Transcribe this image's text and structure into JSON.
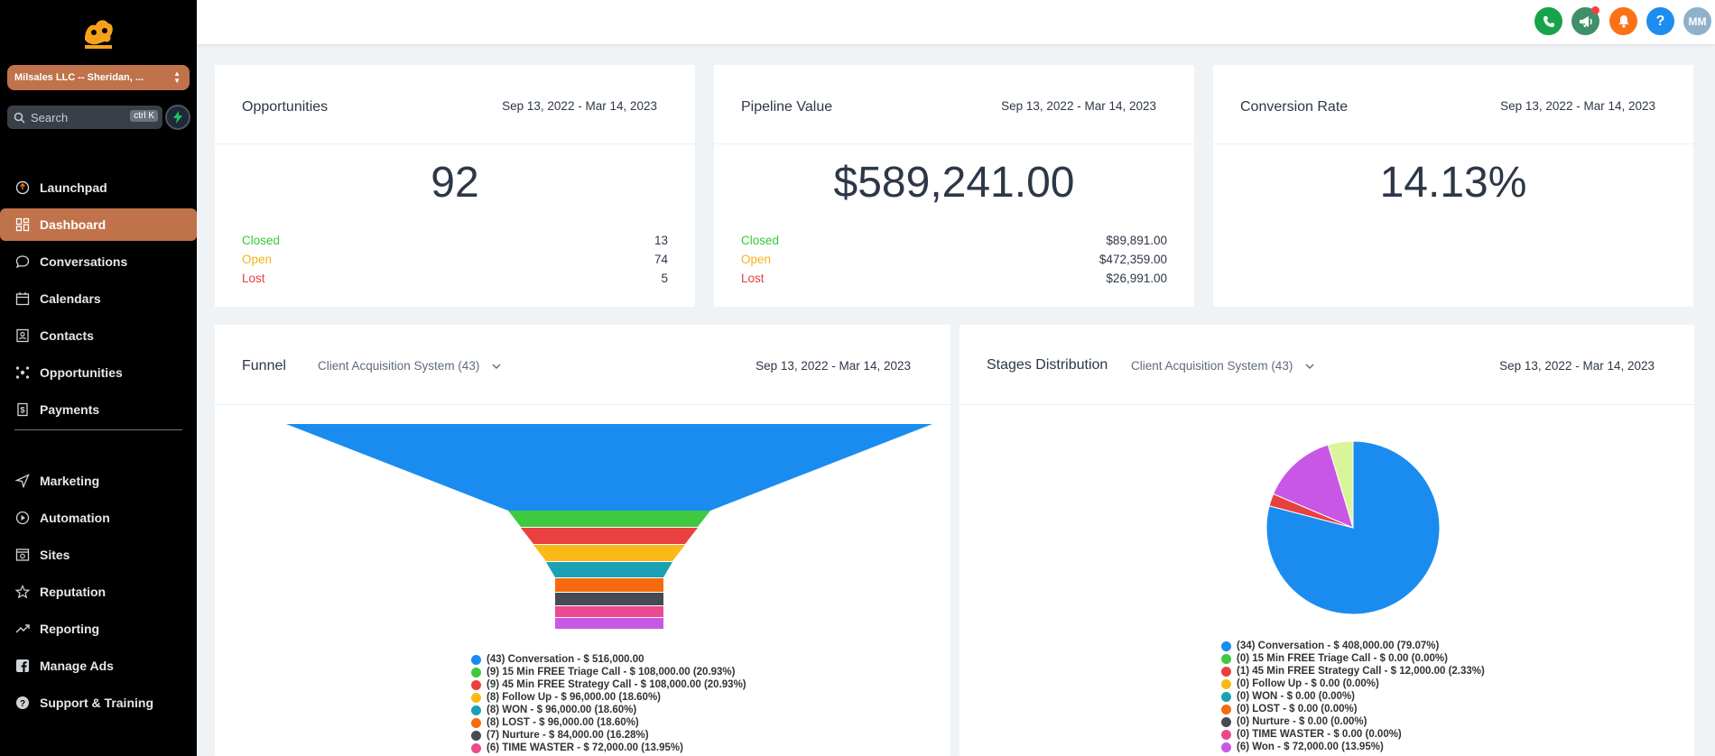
{
  "sidebar": {
    "account_label": "Milsales LLC -- Sheridan, ...",
    "search_placeholder": "Search",
    "search_shortcut": "ctrl K",
    "items": [
      {
        "label": "Launchpad",
        "icon": "launchpad-icon"
      },
      {
        "label": "Dashboard",
        "icon": "dashboard-icon"
      },
      {
        "label": "Conversations",
        "icon": "chat-icon"
      },
      {
        "label": "Calendars",
        "icon": "calendar-icon"
      },
      {
        "label": "Contacts",
        "icon": "contacts-icon"
      },
      {
        "label": "Opportunities",
        "icon": "opportunities-icon"
      },
      {
        "label": "Payments",
        "icon": "payments-icon"
      },
      {
        "label": "Marketing",
        "icon": "send-icon"
      },
      {
        "label": "Automation",
        "icon": "automation-icon"
      },
      {
        "label": "Sites",
        "icon": "sites-icon"
      },
      {
        "label": "Reputation",
        "icon": "star-icon"
      },
      {
        "label": "Reporting",
        "icon": "trend-icon"
      },
      {
        "label": "Manage Ads",
        "icon": "facebook-icon"
      },
      {
        "label": "Support & Training",
        "icon": "help-icon"
      }
    ],
    "active_item": "Dashboard",
    "accent_color": "#c0724a"
  },
  "topbar": {
    "buttons": [
      {
        "name": "phone-icon",
        "color": "#16a34a"
      },
      {
        "name": "megaphone-icon",
        "color": "#3f8f6b"
      },
      {
        "name": "bell-icon",
        "color": "#f97316"
      },
      {
        "name": "help-icon",
        "color": "#1d8df0"
      }
    ],
    "avatar_initials": "MM"
  },
  "cards": {
    "opportunities": {
      "title": "Opportunities",
      "date_range": "Sep 13, 2022 - Mar 14, 2023",
      "value": "92",
      "rows": [
        {
          "label": "Closed",
          "value": "13"
        },
        {
          "label": "Open",
          "value": "74"
        },
        {
          "label": "Lost",
          "value": "5"
        }
      ]
    },
    "pipeline": {
      "title": "Pipeline Value",
      "date_range": "Sep 13, 2022 - Mar 14, 2023",
      "value": "$589,241.00",
      "rows": [
        {
          "label": "Closed",
          "value": "$89,891.00"
        },
        {
          "label": "Open",
          "value": "$472,359.00"
        },
        {
          "label": "Lost",
          "value": "$26,991.00"
        }
      ]
    },
    "conversion": {
      "title": "Conversion Rate",
      "date_range": "Sep 13, 2022 - Mar 14, 2023",
      "value": "14.13%"
    }
  },
  "funnel": {
    "title": "Funnel",
    "pipeline_select": "Client Acquisition System (43)",
    "date_range": "Sep 13, 2022 - Mar 14, 2023"
  },
  "stages": {
    "title": "Stages Distribution",
    "pipeline_select": "Client Acquisition System (43)",
    "date_range": "Sep 13, 2022 - Mar 14, 2023"
  },
  "chart_data": [
    {
      "type": "bar",
      "subtype": "funnel",
      "title": "Funnel",
      "categories": [
        "Conversation",
        "15 Min FREE Triage Call",
        "45 Min FREE Strategy Call",
        "Follow Up",
        "WON",
        "LOST",
        "Nurture",
        "TIME WASTER"
      ],
      "counts": [
        43,
        9,
        9,
        8,
        8,
        8,
        7,
        6
      ],
      "values": [
        516000,
        108000,
        108000,
        96000,
        96000,
        96000,
        84000,
        72000
      ],
      "colors": [
        "#1a8cf0",
        "#3ec93e",
        "#e94040",
        "#fbb917",
        "#1aa1b5",
        "#f56b0e",
        "#464a52",
        "#eb4a8f",
        "#c857e6"
      ],
      "legend": [
        "(43) Conversation - $ 516,000.00",
        "(9) 15 Min FREE Triage Call - $ 108,000.00 (20.93%)",
        "(9) 45 Min FREE Strategy Call - $ 108,000.00 (20.93%)",
        "(8) Follow Up - $ 96,000.00 (18.60%)",
        "(8) WON - $ 96,000.00 (18.60%)",
        "(8) LOST - $ 96,000.00 (18.60%)",
        "(7) Nurture - $ 84,000.00 (16.28%)",
        "(6) TIME WASTER - $ 72,000.00 (13.95%)"
      ]
    },
    {
      "type": "pie",
      "title": "Stages Distribution",
      "categories": [
        "Conversation",
        "15 Min FREE Triage Call",
        "45 Min FREE Strategy Call",
        "Follow Up",
        "WON",
        "LOST",
        "Nurture",
        "TIME WASTER",
        "Won"
      ],
      "counts": [
        34,
        0,
        1,
        0,
        0,
        0,
        0,
        0,
        6
      ],
      "values": [
        408000,
        0,
        12000,
        0,
        0,
        0,
        0,
        0,
        72000
      ],
      "percents": [
        79.07,
        0,
        2.33,
        0,
        0,
        0,
        0,
        0,
        13.95
      ],
      "extra_slice_percent": 4.65,
      "extra_slice_color": "#d9f59b",
      "colors": [
        "#1a8cf0",
        "#3ec93e",
        "#e94040",
        "#fbb917",
        "#1aa1b5",
        "#f56b0e",
        "#464a52",
        "#eb4a8f",
        "#c857e6"
      ],
      "legend": [
        "(34) Conversation - $ 408,000.00 (79.07%)",
        "(0) 15 Min FREE Triage Call - $ 0.00 (0.00%)",
        "(1) 45 Min FREE Strategy Call - $ 12,000.00 (2.33%)",
        "(0) Follow Up - $ 0.00 (0.00%)",
        "(0) WON - $ 0.00 (0.00%)",
        "(0) LOST - $ 0.00 (0.00%)",
        "(0) Nurture - $ 0.00 (0.00%)",
        "(0) TIME WASTER - $ 0.00 (0.00%)",
        "(6) Won - $ 72,000.00 (13.95%)"
      ]
    }
  ]
}
